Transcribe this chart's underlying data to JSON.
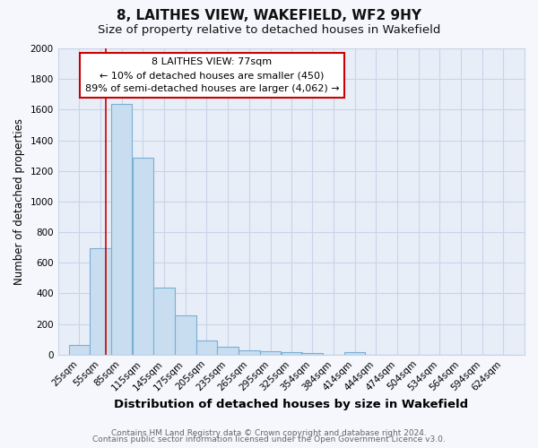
{
  "title": "8, LAITHES VIEW, WAKEFIELD, WF2 9HY",
  "subtitle": "Size of property relative to detached houses in Wakefield",
  "xlabel": "Distribution of detached houses by size in Wakefield",
  "ylabel": "Number of detached properties",
  "bar_color": "#c8ddf0",
  "bar_edge_color": "#7aafd4",
  "categories": [
    "25sqm",
    "55sqm",
    "85sqm",
    "115sqm",
    "145sqm",
    "175sqm",
    "205sqm",
    "235sqm",
    "265sqm",
    "295sqm",
    "325sqm",
    "354sqm",
    "384sqm",
    "414sqm",
    "444sqm",
    "474sqm",
    "504sqm",
    "534sqm",
    "564sqm",
    "594sqm",
    "624sqm"
  ],
  "bin_left_edges": [
    25,
    55,
    85,
    115,
    145,
    175,
    205,
    235,
    265,
    295,
    325,
    354,
    384,
    414,
    444,
    474,
    504,
    534,
    564,
    594,
    624
  ],
  "bin_width": 30,
  "values": [
    65,
    695,
    1635,
    1285,
    440,
    255,
    90,
    50,
    30,
    20,
    15,
    10,
    0,
    15,
    0,
    0,
    0,
    0,
    0,
    0,
    0
  ],
  "property_size": 77,
  "vline_color": "#cc0000",
  "ylim": [
    0,
    2000
  ],
  "yticks": [
    0,
    200,
    400,
    600,
    800,
    1000,
    1200,
    1400,
    1600,
    1800,
    2000
  ],
  "annotation_title": "8 LAITHES VIEW: 77sqm",
  "annotation_line1": "← 10% of detached houses are smaller (450)",
  "annotation_line2": "89% of semi-detached houses are larger (4,062) →",
  "annotation_box_facecolor": "#ffffff",
  "annotation_box_edgecolor": "#cc0000",
  "footer_line1": "Contains HM Land Registry data © Crown copyright and database right 2024.",
  "footer_line2": "Contains public sector information licensed under the Open Government Licence v3.0.",
  "plot_bg_color": "#e8eef8",
  "fig_bg_color": "#f5f7fc",
  "grid_color": "#c8d4e8",
  "title_fontsize": 11,
  "subtitle_fontsize": 9.5,
  "xlabel_fontsize": 9.5,
  "ylabel_fontsize": 8.5,
  "tick_fontsize": 7.5,
  "annotation_fontsize": 8,
  "footer_fontsize": 6.5
}
